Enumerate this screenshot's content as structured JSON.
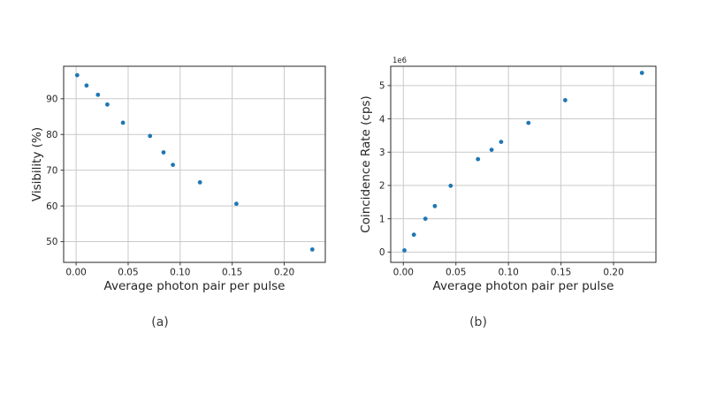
{
  "figure": {
    "background": "#ffffff",
    "captions": {
      "a": "(a)",
      "b": "(b)"
    }
  },
  "colors": {
    "marker": "#1f77b4",
    "grid": "#c9c9c9",
    "spine": "#3a3a3a",
    "text": "#262626"
  },
  "chart_data": [
    {
      "type": "scatter",
      "panel": "a",
      "title": "",
      "xlabel": "Average photon pair per pulse",
      "ylabel": "Visibility (%)",
      "x": [
        0.001,
        0.01,
        0.021,
        0.03,
        0.045,
        0.071,
        0.084,
        0.093,
        0.119,
        0.154,
        0.227
      ],
      "y": [
        96.6,
        93.7,
        91.1,
        88.4,
        83.3,
        79.6,
        75.0,
        71.5,
        66.6,
        60.6,
        47.8
      ],
      "xlim": [
        -0.012,
        0.2395
      ],
      "ylim": [
        44.2,
        99.1
      ],
      "xticks": [
        0,
        0.05,
        0.1,
        0.15,
        0.2
      ],
      "xtick_labels": [
        "0.00",
        "0.05",
        "0.10",
        "0.15",
        "0.20"
      ],
      "yticks": [
        50,
        60,
        70,
        80,
        90
      ],
      "ytick_labels": [
        "50",
        "60",
        "70",
        "80",
        "90"
      ],
      "grid": true,
      "legend": null,
      "marker_color": "#1f77b4"
    },
    {
      "type": "scatter",
      "panel": "b",
      "title": "",
      "xlabel": "Average photon pair per pulse",
      "ylabel": "Coincidence Rate (cps)",
      "offset_text": "1e6",
      "x": [
        0.001,
        0.01,
        0.021,
        0.03,
        0.045,
        0.071,
        0.084,
        0.093,
        0.119,
        0.154,
        0.227
      ],
      "y": [
        50000,
        520000,
        1000000,
        1380000,
        1990000,
        2790000,
        3070000,
        3310000,
        3880000,
        4560000,
        5380000
      ],
      "xlim": [
        -0.012,
        0.2403
      ],
      "ylim": [
        -310000,
        5580000
      ],
      "xticks": [
        0,
        0.05,
        0.1,
        0.15,
        0.2
      ],
      "xtick_labels": [
        "0.00",
        "0.05",
        "0.10",
        "0.15",
        "0.20"
      ],
      "yticks": [
        0,
        1000000,
        2000000,
        3000000,
        4000000,
        5000000
      ],
      "ytick_labels": [
        "0",
        "1",
        "2",
        "3",
        "4",
        "5"
      ],
      "grid": true,
      "legend": null,
      "marker_color": "#1f77b4"
    }
  ]
}
